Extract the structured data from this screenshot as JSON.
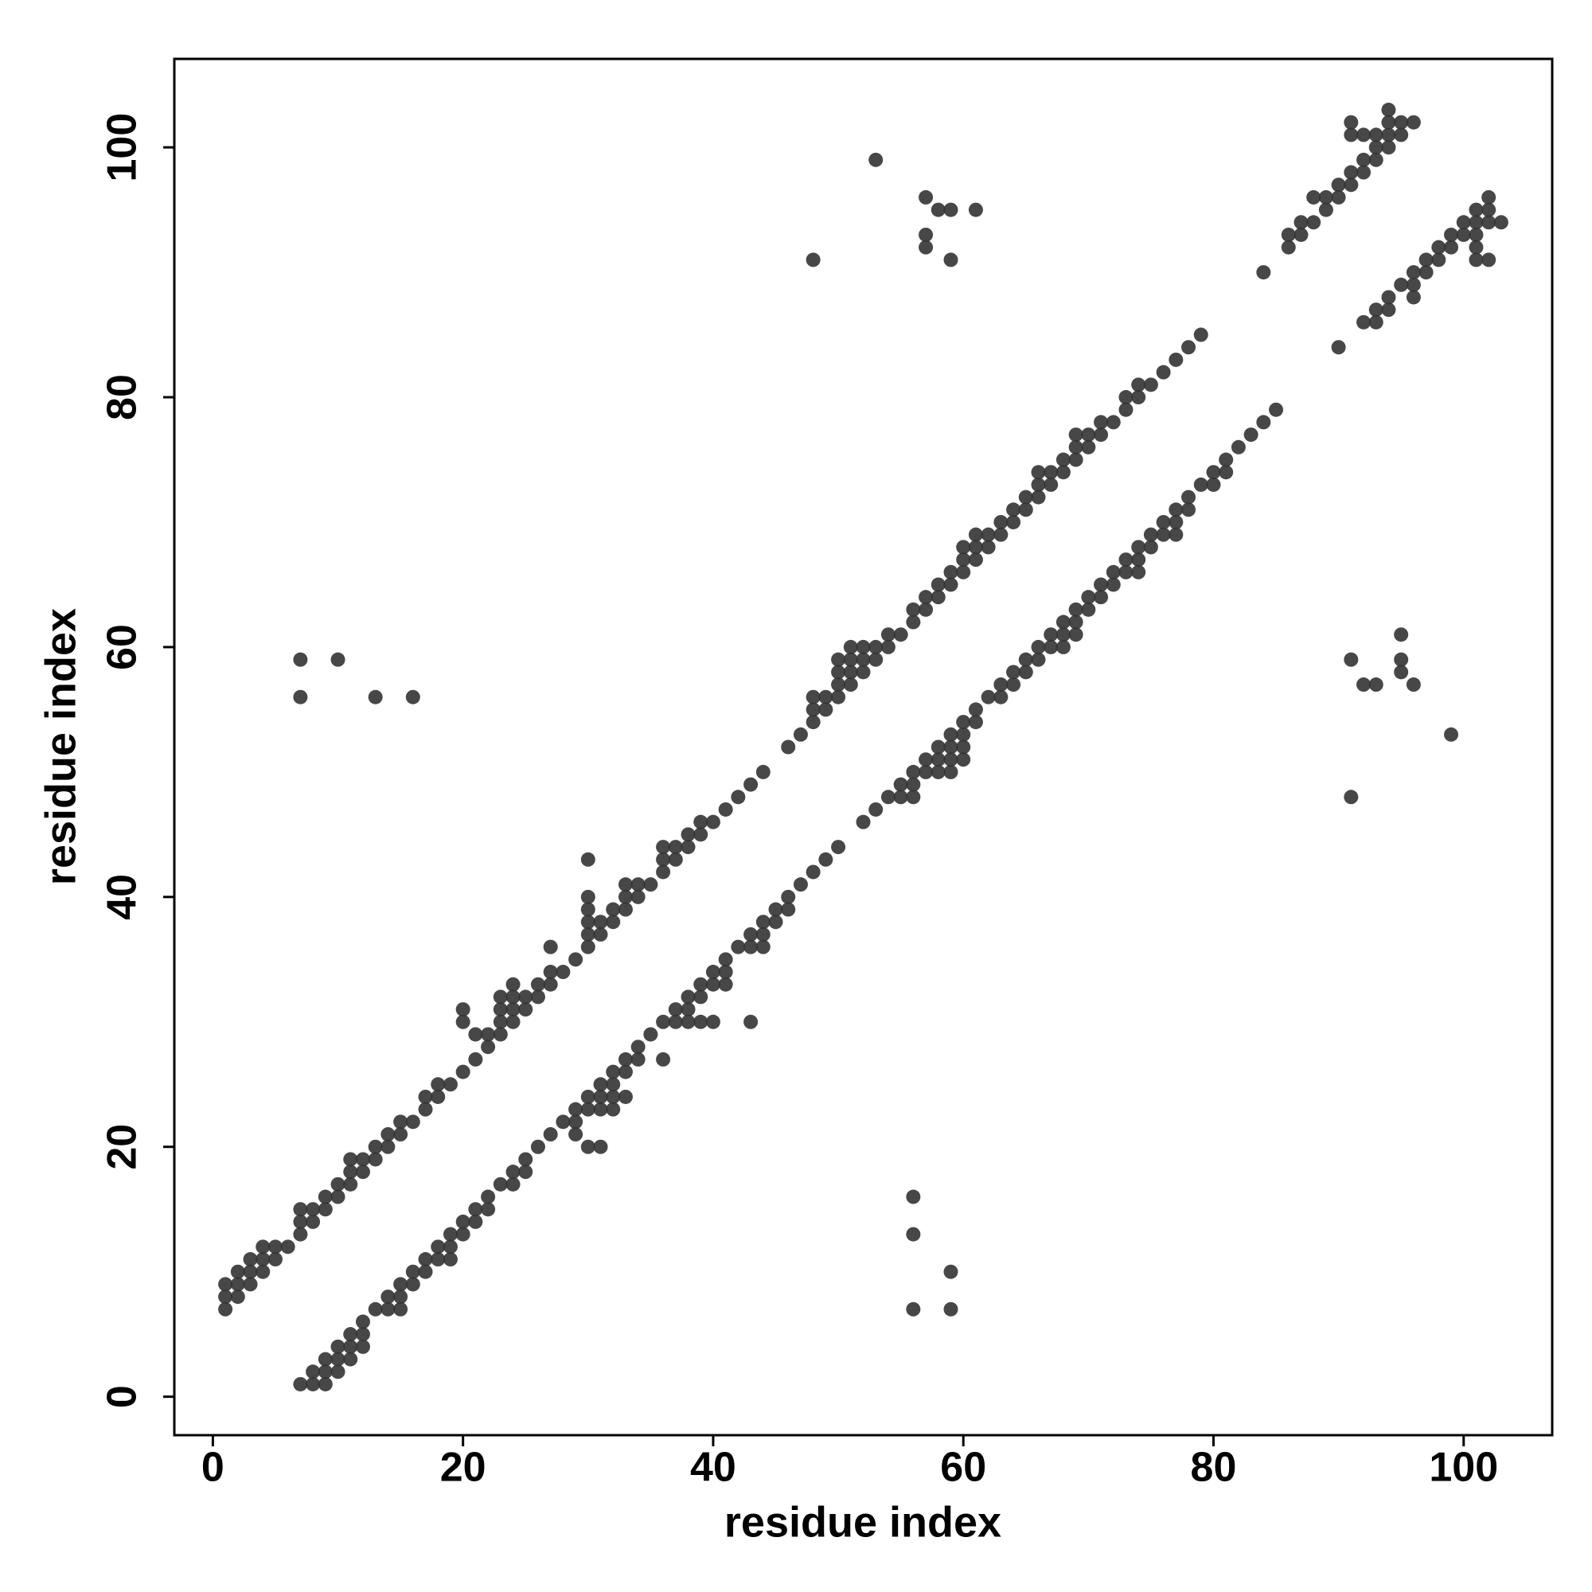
{
  "chart_data": {
    "type": "scatter",
    "x_label": "residue index",
    "y_label": "residue index",
    "color": "#333333",
    "xlim": [
      -3.08,
      107.08
    ],
    "ylim": [
      -3.08,
      107.08
    ],
    "xticks": [
      0,
      20,
      40,
      60,
      80,
      100
    ],
    "yticks": [
      0,
      20,
      40,
      60,
      80,
      100
    ],
    "x": [
      1,
      1,
      1,
      2,
      2,
      2,
      3,
      3,
      3,
      4,
      4,
      4,
      5,
      5,
      6,
      7,
      7,
      7,
      8,
      8,
      9,
      9,
      10,
      10,
      11,
      11,
      11,
      12,
      12,
      13,
      13,
      14,
      14,
      15,
      15,
      16,
      17,
      17,
      18,
      18,
      19,
      20,
      20,
      20,
      21,
      21,
      22,
      22,
      23,
      23,
      23,
      23,
      24,
      24,
      24,
      24,
      25,
      25,
      26,
      26,
      27,
      27,
      27,
      28,
      29,
      30,
      30,
      30,
      30,
      30,
      30,
      31,
      31,
      32,
      32,
      33,
      33,
      33,
      34,
      34,
      35,
      36,
      36,
      36,
      37,
      37,
      38,
      38,
      39,
      39,
      40,
      41,
      42,
      43,
      44,
      46,
      47,
      48,
      48,
      48,
      49,
      49,
      50,
      50,
      50,
      50,
      51,
      51,
      51,
      51,
      52,
      52,
      52,
      53,
      53,
      54,
      54,
      55,
      56,
      56,
      57,
      57,
      58,
      58,
      59,
      59,
      60,
      60,
      60,
      61,
      61,
      61,
      62,
      62,
      63,
      63,
      64,
      64,
      65,
      65,
      66,
      66,
      66,
      67,
      67,
      68,
      68,
      69,
      69,
      69,
      70,
      70,
      71,
      71,
      72,
      73,
      73,
      74,
      74,
      75,
      76,
      77,
      78,
      79,
      48,
      53,
      57,
      57,
      57,
      58,
      59,
      59,
      61,
      7,
      7,
      10,
      13,
      16,
      84,
      86,
      86,
      87,
      87,
      88,
      88,
      89,
      89,
      90,
      90,
      91,
      91,
      91,
      91,
      92,
      92,
      92,
      93,
      93,
      93,
      94,
      94,
      94,
      94,
      95,
      95,
      96,
      7,
      8,
      9,
      8,
      9,
      10,
      9,
      10,
      11,
      10,
      11,
      12,
      11,
      12,
      12,
      13,
      14,
      15,
      14,
      15,
      15,
      16,
      16,
      17,
      17,
      18,
      19,
      18,
      19,
      19,
      20,
      20,
      21,
      21,
      22,
      22,
      23,
      24,
      24,
      25,
      25,
      26,
      30,
      31,
      27,
      29,
      28,
      29,
      29,
      30,
      31,
      32,
      30,
      31,
      32,
      33,
      31,
      32,
      32,
      33,
      33,
      34,
      36,
      34,
      35,
      36,
      37,
      38,
      39,
      40,
      43,
      37,
      38,
      38,
      39,
      39,
      40,
      41,
      40,
      41,
      41,
      42,
      43,
      44,
      43,
      44,
      44,
      45,
      45,
      46,
      46,
      47,
      48,
      49,
      50,
      52,
      53,
      54,
      55,
      56,
      55,
      56,
      56,
      57,
      58,
      59,
      57,
      58,
      59,
      60,
      58,
      59,
      60,
      59,
      60,
      60,
      61,
      61,
      62,
      63,
      63,
      64,
      64,
      65,
      65,
      66,
      66,
      67,
      68,
      67,
      68,
      69,
      68,
      69,
      69,
      70,
      70,
      71,
      71,
      72,
      72,
      73,
      74,
      73,
      74,
      74,
      75,
      75,
      76,
      77,
      76,
      77,
      77,
      78,
      78,
      79,
      80,
      80,
      81,
      81,
      82,
      83,
      84,
      85,
      91,
      99,
      92,
      93,
      96,
      95,
      91,
      95,
      95,
      56,
      59,
      59,
      56,
      56,
      90,
      92,
      93,
      93,
      94,
      94,
      96,
      95,
      96,
      96,
      97,
      97,
      98,
      101,
      102,
      98,
      99,
      101,
      99,
      100,
      101,
      100,
      101,
      102,
      103,
      101,
      102,
      102
    ],
    "y": [
      7,
      8,
      9,
      8,
      9,
      10,
      9,
      10,
      11,
      10,
      11,
      12,
      11,
      12,
      12,
      13,
      14,
      15,
      14,
      15,
      15,
      16,
      16,
      17,
      17,
      18,
      19,
      18,
      19,
      19,
      20,
      20,
      21,
      21,
      22,
      22,
      23,
      24,
      24,
      25,
      25,
      26,
      30,
      31,
      27,
      29,
      28,
      29,
      29,
      30,
      31,
      32,
      30,
      31,
      32,
      33,
      31,
      32,
      32,
      33,
      33,
      34,
      36,
      34,
      35,
      36,
      37,
      38,
      39,
      40,
      43,
      37,
      38,
      38,
      39,
      39,
      40,
      41,
      40,
      41,
      41,
      42,
      43,
      44,
      43,
      44,
      44,
      45,
      45,
      46,
      46,
      47,
      48,
      49,
      50,
      52,
      53,
      54,
      55,
      56,
      55,
      56,
      56,
      57,
      58,
      59,
      57,
      58,
      59,
      60,
      58,
      59,
      60,
      59,
      60,
      60,
      61,
      61,
      62,
      63,
      63,
      64,
      64,
      65,
      65,
      66,
      66,
      67,
      68,
      67,
      68,
      69,
      68,
      69,
      69,
      70,
      70,
      71,
      71,
      72,
      72,
      73,
      74,
      73,
      74,
      74,
      75,
      75,
      76,
      77,
      76,
      77,
      77,
      78,
      78,
      79,
      80,
      80,
      81,
      81,
      82,
      83,
      84,
      85,
      91,
      99,
      92,
      93,
      96,
      95,
      91,
      95,
      95,
      56,
      59,
      59,
      56,
      56,
      90,
      92,
      93,
      93,
      94,
      94,
      96,
      95,
      96,
      96,
      97,
      97,
      98,
      101,
      102,
      98,
      99,
      101,
      99,
      100,
      101,
      100,
      101,
      102,
      103,
      101,
      102,
      102,
      1,
      1,
      1,
      2,
      2,
      2,
      3,
      3,
      3,
      4,
      4,
      4,
      5,
      5,
      6,
      7,
      7,
      7,
      8,
      8,
      9,
      9,
      10,
      10,
      11,
      11,
      11,
      12,
      12,
      13,
      13,
      14,
      14,
      15,
      15,
      16,
      17,
      17,
      18,
      18,
      19,
      20,
      20,
      20,
      21,
      21,
      22,
      22,
      23,
      23,
      23,
      23,
      24,
      24,
      24,
      24,
      25,
      25,
      26,
      26,
      27,
      27,
      27,
      28,
      29,
      30,
      30,
      30,
      30,
      30,
      30,
      31,
      31,
      32,
      32,
      33,
      33,
      33,
      34,
      34,
      35,
      36,
      36,
      36,
      37,
      37,
      38,
      38,
      39,
      39,
      40,
      41,
      42,
      43,
      44,
      46,
      47,
      48,
      48,
      48,
      49,
      49,
      50,
      50,
      50,
      50,
      51,
      51,
      51,
      51,
      52,
      52,
      52,
      53,
      53,
      54,
      54,
      55,
      56,
      56,
      57,
      57,
      58,
      58,
      59,
      59,
      60,
      60,
      60,
      61,
      61,
      61,
      62,
      62,
      63,
      63,
      64,
      64,
      65,
      65,
      66,
      66,
      66,
      67,
      67,
      68,
      68,
      69,
      69,
      69,
      70,
      70,
      71,
      71,
      72,
      73,
      73,
      74,
      74,
      75,
      76,
      77,
      78,
      79,
      48,
      53,
      57,
      57,
      57,
      58,
      59,
      59,
      61,
      7,
      7,
      10,
      13,
      16,
      84,
      86,
      86,
      87,
      87,
      88,
      88,
      89,
      89,
      90,
      90,
      91,
      91,
      91,
      91,
      92,
      92,
      92,
      93,
      93,
      93,
      94,
      94,
      94,
      94,
      95,
      95,
      96
    ]
  }
}
